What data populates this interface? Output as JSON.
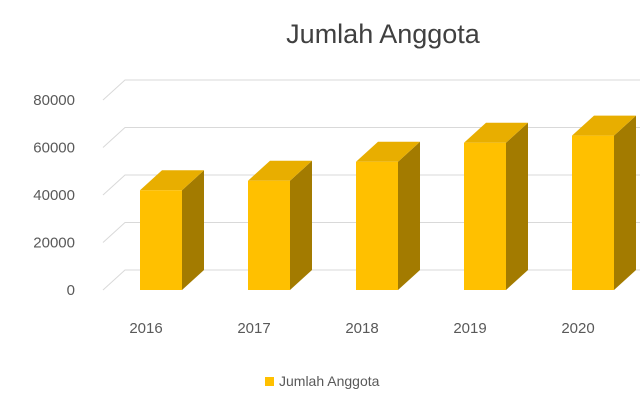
{
  "chart_data": {
    "type": "bar",
    "title": "Jumlah Anggota",
    "categories": [
      "2016",
      "2017",
      "2018",
      "2019",
      "2020"
    ],
    "series": [
      {
        "name": "Jumlah Anggota",
        "values": [
          42000,
          46000,
          54000,
          62000,
          65000
        ]
      }
    ],
    "ylim": [
      0,
      80000
    ],
    "yticks": [
      "0",
      "20000",
      "40000",
      "60000",
      "80000"
    ],
    "grid": true,
    "legend_position": "bottom",
    "colors": {
      "front": "#FFC000",
      "top": "#E8AE00",
      "side": "#A37B00",
      "grid": "#D9D9D9"
    }
  }
}
